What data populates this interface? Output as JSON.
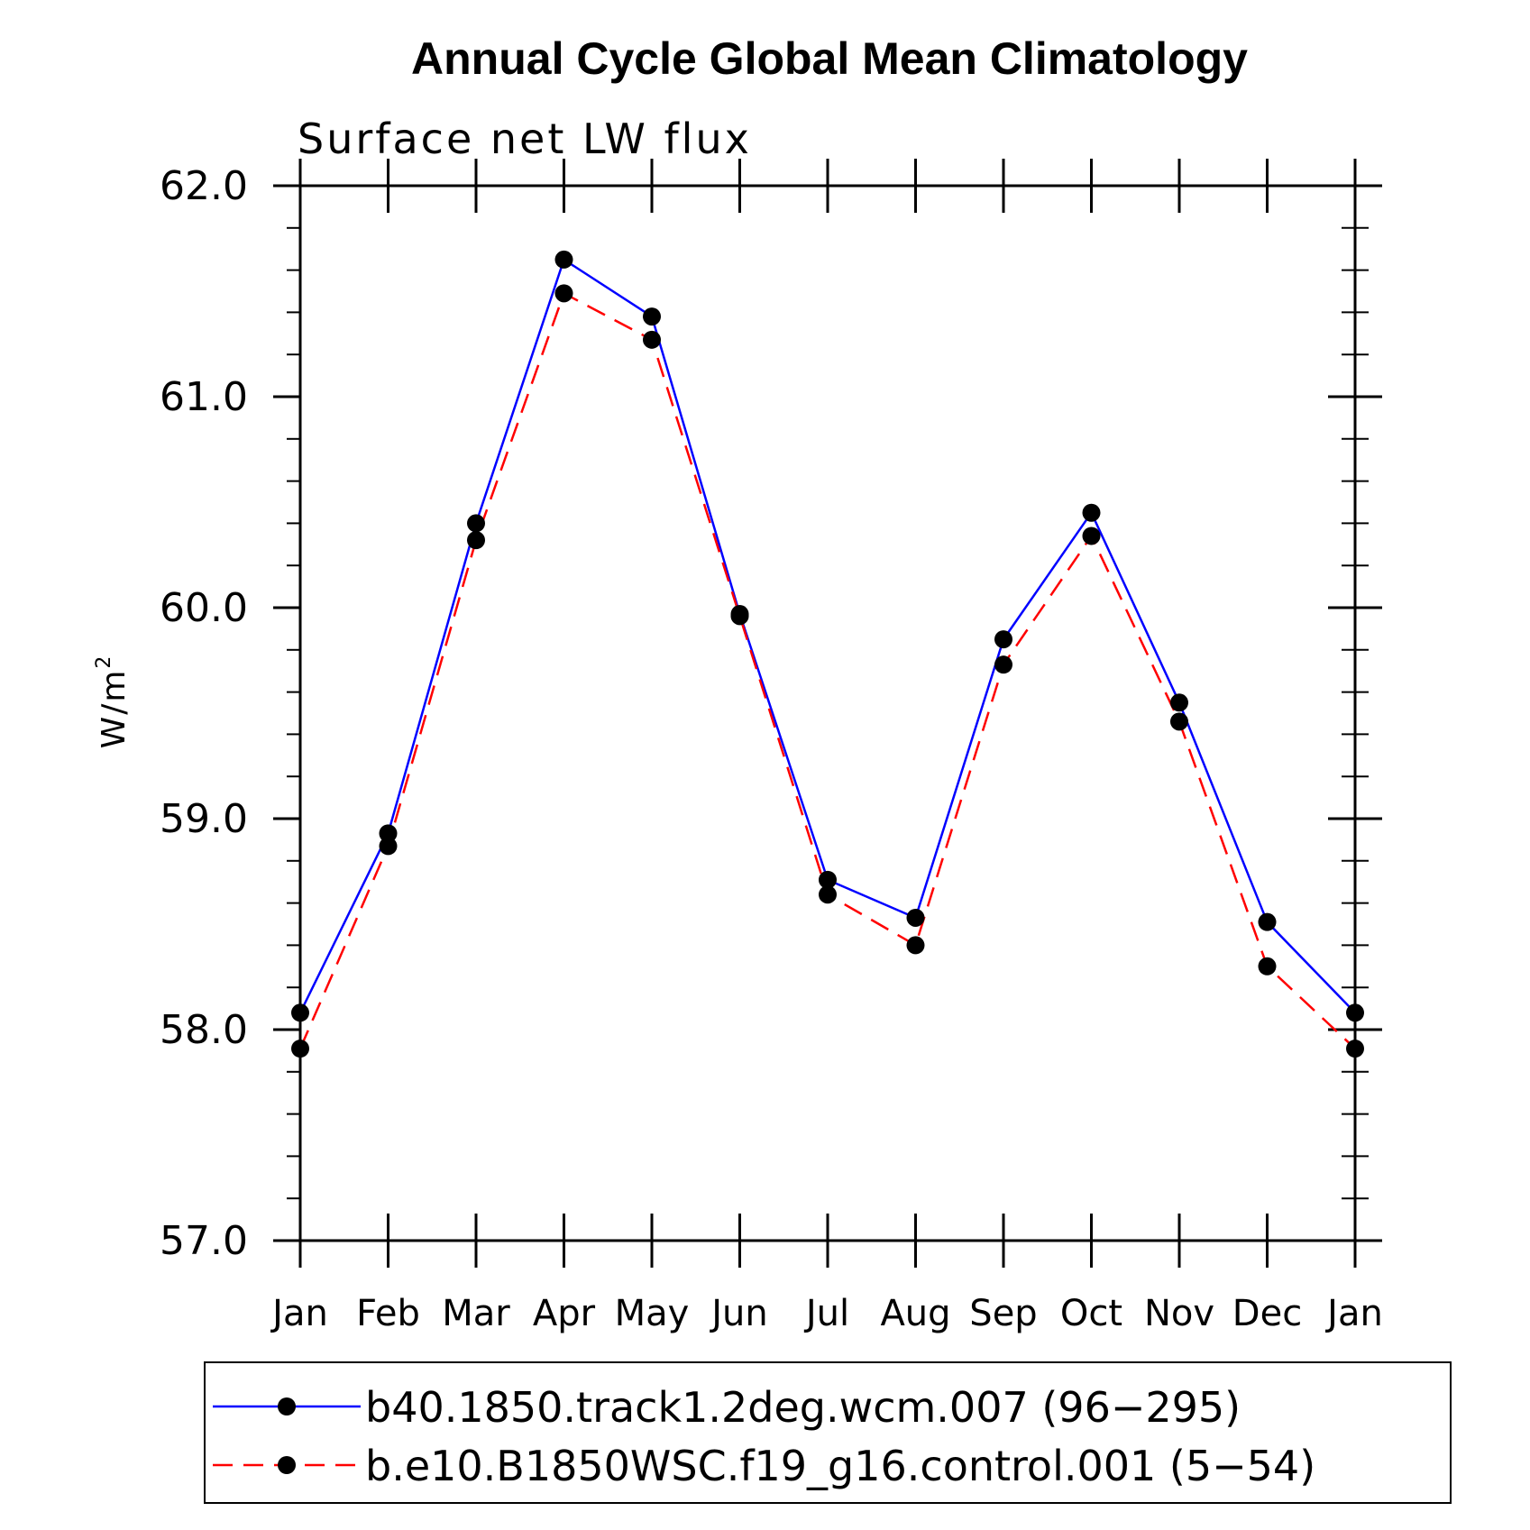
{
  "chart_data": {
    "type": "line",
    "title": "Annual Cycle Global Mean Climatology",
    "subtitle": "Surface net LW flux",
    "ylabel": "W/m",
    "ylabel_superscript": "2",
    "xlabel": "",
    "categories": [
      "Jan",
      "Feb",
      "Mar",
      "Apr",
      "May",
      "Jun",
      "Jul",
      "Aug",
      "Sep",
      "Oct",
      "Nov",
      "Dec",
      "Jan"
    ],
    "ylim": [
      57.0,
      62.0
    ],
    "yticks": [
      57.0,
      58.0,
      59.0,
      60.0,
      61.0,
      62.0
    ],
    "ytick_labels": [
      "57.0",
      "58.0",
      "59.0",
      "60.0",
      "61.0",
      "62.0"
    ],
    "grid": false,
    "legend_position": "bottom",
    "series": [
      {
        "name": "b40.1850.track1.2deg.wcm.007 (96−295)",
        "color": "#0000ff",
        "dash": "solid",
        "marker": "filled-circle",
        "values": [
          58.08,
          58.93,
          60.4,
          61.65,
          61.38,
          59.97,
          58.71,
          58.53,
          59.85,
          60.45,
          59.55,
          58.51,
          58.08
        ]
      },
      {
        "name": "b.e10.B1850WSC.f19_g16.control.001 (5−54)",
        "color": "#ff0000",
        "dash": "dashed",
        "marker": "filled-circle",
        "values": [
          57.91,
          58.87,
          60.32,
          61.49,
          61.27,
          59.96,
          58.64,
          58.4,
          59.73,
          60.34,
          59.46,
          58.3,
          57.91
        ]
      }
    ]
  }
}
